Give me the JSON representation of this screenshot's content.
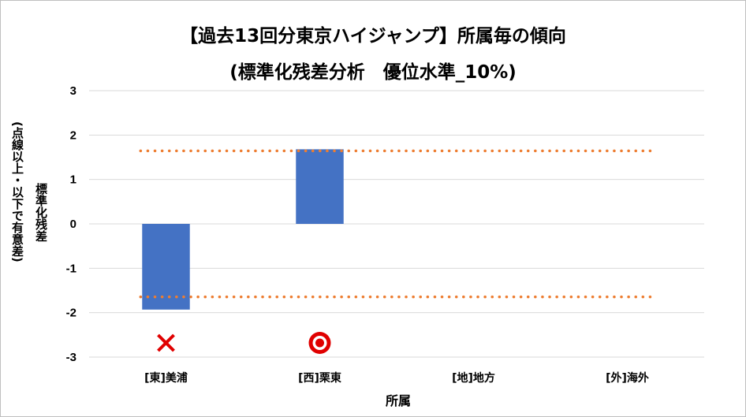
{
  "chart_data": {
    "type": "bar",
    "title": "【過去13回分東京ハイジャンプ】所属毎の傾向",
    "subtitle": "(標準化残差分析　優位水準_10%)",
    "xlabel": "所属",
    "ylabel": "標準化残差",
    "ylabel_note": "(点線以上・以下で有意差)",
    "categories": [
      "[東]美浦",
      "[西]栗東",
      "[地]地方",
      "[外]海外"
    ],
    "values": [
      -1.93,
      1.68,
      null,
      null
    ],
    "ylim": [
      -3,
      3
    ],
    "yticks": [
      3,
      2,
      1,
      0,
      -1,
      -2,
      -3
    ],
    "thresholds": [
      1.645,
      -1.645
    ],
    "markers": [
      "×",
      "○",
      null,
      null
    ],
    "grid": true,
    "legend": "none",
    "colors": {
      "bar": "#4472c4",
      "threshold": "#ed7d31",
      "grid": "#d9d9d9",
      "cross": "#e00000",
      "circle": "#e00000"
    }
  }
}
